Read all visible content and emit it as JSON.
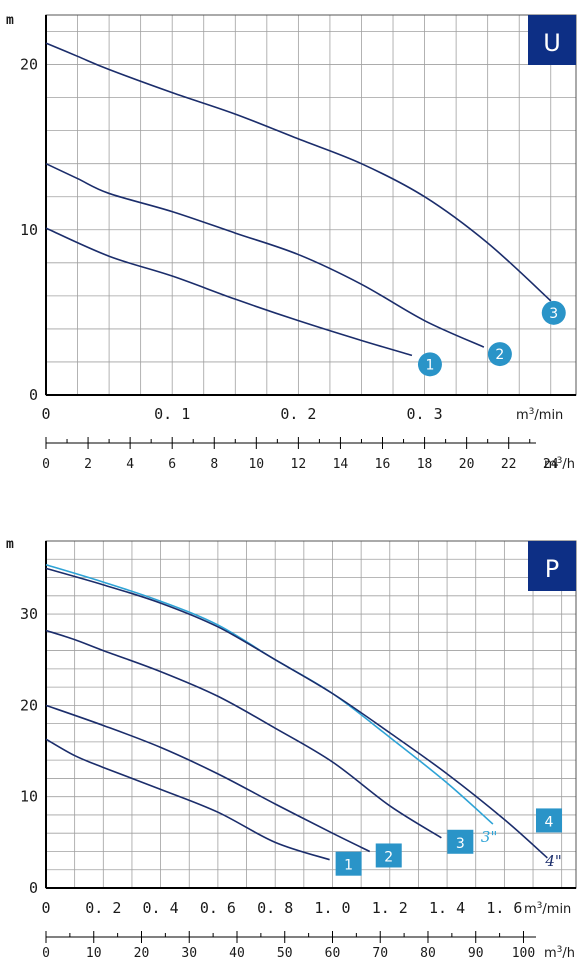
{
  "colors": {
    "curve": "#1b2d6b",
    "curve_alt": "#2ea3d6",
    "marker": "#2a94c8",
    "badge": "#0d2f85",
    "grid": "#a0a0a0",
    "axis": "#000000"
  },
  "chart_data": [
    {
      "type": "line",
      "badge": "U",
      "y_unit": "m",
      "x_unit": "m3/min",
      "x_unit_secondary": "m3/h",
      "xlim": [
        0,
        0.42
      ],
      "ylim": [
        0,
        23
      ],
      "x_ticks": [
        "0",
        "0. 1",
        "0. 2",
        "0. 3"
      ],
      "x_tick_values": [
        0,
        0.1,
        0.2,
        0.3
      ],
      "y_ticks": [
        "0",
        "10",
        "20"
      ],
      "y_tick_values": [
        0,
        10,
        20
      ],
      "secondary_ticks": [
        "0",
        "2",
        "4",
        "6",
        "8",
        "10",
        "12",
        "14",
        "16",
        "18",
        "20",
        "22",
        "24"
      ],
      "secondary_tick_values": [
        0,
        2,
        4,
        6,
        8,
        10,
        12,
        14,
        16,
        18,
        20,
        22,
        24
      ],
      "grid": true,
      "series": [
        {
          "name": "1",
          "x": [
            0,
            0.05,
            0.1,
            0.15,
            0.2,
            0.25,
            0.29
          ],
          "y": [
            10.1,
            8.4,
            7.2,
            5.8,
            4.5,
            3.3,
            2.4
          ]
        },
        {
          "name": "2",
          "x": [
            0,
            0.025,
            0.05,
            0.1,
            0.15,
            0.2,
            0.25,
            0.3,
            0.347
          ],
          "y": [
            14.0,
            13.1,
            12.2,
            11.1,
            9.8,
            8.5,
            6.7,
            4.5,
            2.9
          ]
        },
        {
          "name": "3",
          "x": [
            0,
            0.025,
            0.05,
            0.1,
            0.15,
            0.2,
            0.25,
            0.3,
            0.35,
            0.4
          ],
          "y": [
            21.3,
            20.5,
            19.7,
            18.3,
            17.0,
            15.5,
            14.0,
            12.0,
            9.2,
            5.7
          ]
        }
      ]
    },
    {
      "type": "line",
      "badge": "P",
      "y_unit": "m",
      "x_unit": "m3/min",
      "x_unit_secondary": "m3/h",
      "xlim": [
        0,
        1.85
      ],
      "ylim": [
        0,
        38
      ],
      "x_ticks": [
        "0",
        "0. 2",
        "0. 4",
        "0. 6",
        "0. 8",
        "1. 0",
        "1. 2",
        "1. 4",
        "1. 6"
      ],
      "x_tick_values": [
        0,
        0.2,
        0.4,
        0.6,
        0.8,
        1.0,
        1.2,
        1.4,
        1.6
      ],
      "y_ticks": [
        "0",
        "10",
        "20",
        "30"
      ],
      "y_tick_values": [
        0,
        10,
        20,
        30
      ],
      "secondary_ticks": [
        "0",
        "10",
        "20",
        "30",
        "40",
        "50",
        "60",
        "70",
        "80",
        "90",
        "100"
      ],
      "secondary_tick_values": [
        0,
        10,
        20,
        30,
        40,
        50,
        60,
        70,
        80,
        90,
        100
      ],
      "grid": true,
      "series": [
        {
          "name": "1",
          "x": [
            0,
            0.1,
            0.2,
            0.4,
            0.6,
            0.8,
            0.99
          ],
          "y": [
            16.3,
            14.5,
            13.2,
            10.8,
            8.3,
            5.0,
            3.1
          ]
        },
        {
          "name": "2",
          "x": [
            0,
            0.2,
            0.4,
            0.6,
            0.8,
            1.0,
            1.13
          ],
          "y": [
            20.0,
            17.8,
            15.4,
            12.5,
            9.2,
            6.0,
            4.0
          ]
        },
        {
          "name": "3",
          "x": [
            0,
            0.1,
            0.2,
            0.4,
            0.6,
            0.8,
            1.0,
            1.2,
            1.38
          ],
          "y": [
            28.2,
            27.2,
            26.0,
            23.7,
            21.0,
            17.5,
            13.8,
            9.0,
            5.5
          ]
        },
        {
          "name": "3\"",
          "x": [
            0,
            0.2,
            0.4,
            0.6,
            0.8,
            1.0,
            1.2,
            1.4,
            1.56
          ],
          "y": [
            35.4,
            33.5,
            31.4,
            28.8,
            25.0,
            21.3,
            16.5,
            11.5,
            7.0
          ]
        },
        {
          "name": "4\"",
          "x": [
            0,
            0.2,
            0.4,
            0.6,
            0.8,
            1.0,
            1.2,
            1.4,
            1.6,
            1.75
          ],
          "y": [
            35.0,
            33.2,
            31.2,
            28.6,
            25.0,
            21.3,
            17.0,
            12.5,
            7.5,
            3.3
          ]
        }
      ],
      "markers": [
        "1",
        "2",
        "3",
        "4"
      ],
      "annotations": [
        "3\"",
        "4\""
      ]
    }
  ]
}
